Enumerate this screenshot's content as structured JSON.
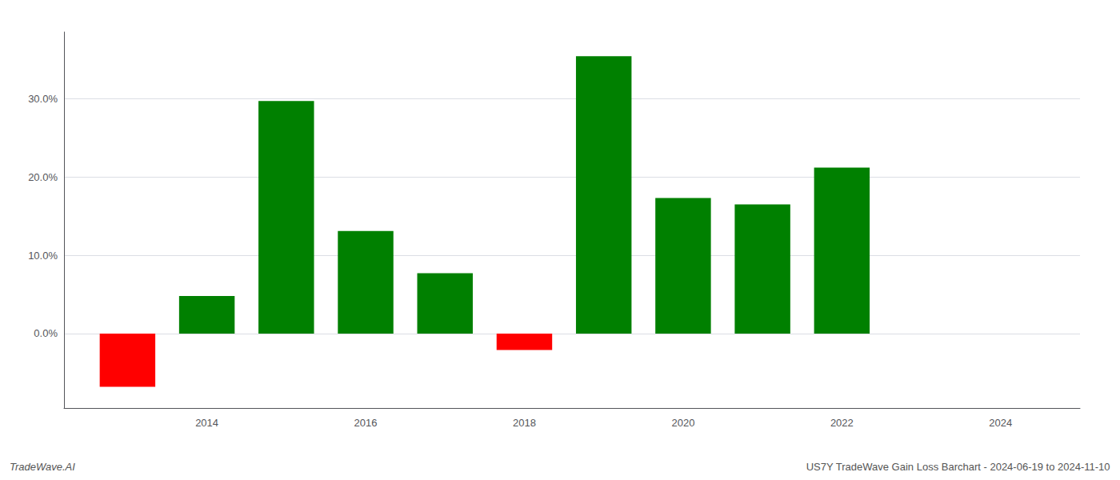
{
  "chart_data": {
    "type": "bar",
    "x": [
      2013,
      2014,
      2015,
      2016,
      2017,
      2018,
      2019,
      2020,
      2021,
      2022,
      2023
    ],
    "values": [
      -0.068,
      0.048,
      0.297,
      0.131,
      0.077,
      -0.021,
      0.354,
      0.173,
      0.165,
      0.212,
      0.0
    ],
    "colors": [
      "#ff0000",
      "#008000",
      "#008000",
      "#008000",
      "#008000",
      "#ff0000",
      "#008000",
      "#008000",
      "#008000",
      "#008000",
      "#008000"
    ],
    "xlim": [
      2012.2,
      2025.0
    ],
    "xticks": [
      2014,
      2016,
      2018,
      2020,
      2022,
      2024
    ],
    "ylim": [
      -0.095,
      0.385
    ],
    "yticks": [
      {
        "value": 0.0,
        "label": "0.0%"
      },
      {
        "value": 0.1,
        "label": "10.0%"
      },
      {
        "value": 0.2,
        "label": "20.0%"
      },
      {
        "value": 0.3,
        "label": "30.0%"
      }
    ],
    "grid": true,
    "annotations": [
      "TradeWave.AI",
      "US7Y TradeWave Gain Loss Barchart - 2024-06-19 to 2024-11-10"
    ]
  }
}
